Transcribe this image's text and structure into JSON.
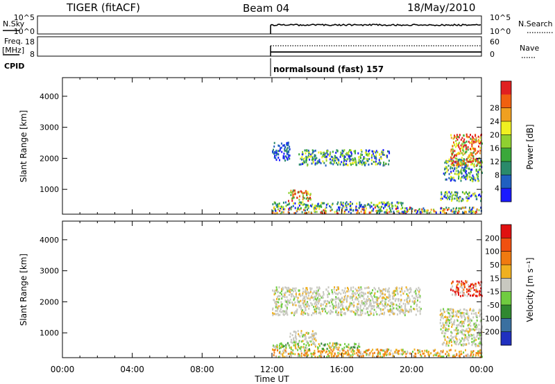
{
  "header": {
    "radar": "TIGER (fitACF)",
    "beam": "Beam 04",
    "date": "18/May/2010"
  },
  "strip_nsky": {
    "left_label": "N.Sky",
    "left_ticks": [
      "10^5",
      "10^0"
    ],
    "right_label": "N.Search",
    "right_ticks": [
      "10^5",
      "10^0"
    ]
  },
  "strip_freq": {
    "left_label": "Freq.",
    "left_unit": "[MHz]",
    "left_ticks": [
      "18",
      "8"
    ],
    "right_label": "Nave",
    "right_ticks": [
      "60",
      "0"
    ]
  },
  "strip_cpid": {
    "label": "CPID",
    "program": "normalsound (fast) 157"
  },
  "time_axis": {
    "label": "Time UT",
    "ticks": [
      "00:00",
      "04:00",
      "08:00",
      "12:00",
      "16:00",
      "20:00",
      "00:00"
    ]
  },
  "chart_data": [
    {
      "type": "heatmap",
      "panel": "power",
      "ylabel": "Slant Range [km]",
      "yticks": [
        1000,
        2000,
        3000,
        4000
      ],
      "ylim": [
        200,
        4600
      ],
      "xlim_hours": [
        0,
        24
      ],
      "data_start_hour": 12,
      "colorbar": {
        "label": "Power [dB]",
        "ticks": [
          "4",
          "8",
          "12",
          "16",
          "20",
          "24",
          "28"
        ],
        "colors": [
          "#1a1aff",
          "#2060c0",
          "#2a8a6a",
          "#3aa83a",
          "#90d030",
          "#f0f020",
          "#f0a020",
          "#f06010",
          "#e02020"
        ]
      },
      "echo_regions": [
        {
          "t0": 12.0,
          "t1": 24.0,
          "r0": 250,
          "r1": 450,
          "level": "mixed"
        },
        {
          "t0": 12.0,
          "t1": 19.5,
          "r0": 450,
          "r1": 620,
          "level": "medium"
        },
        {
          "t0": 12.9,
          "t1": 14.2,
          "r0": 650,
          "r1": 1000,
          "level": "high"
        },
        {
          "t0": 12.0,
          "t1": 13.0,
          "r0": 1950,
          "r1": 2550,
          "level": "low"
        },
        {
          "t0": 13.5,
          "t1": 18.7,
          "r0": 1800,
          "r1": 2300,
          "level": "medium"
        },
        {
          "t0": 21.6,
          "t1": 24.0,
          "r0": 650,
          "r1": 950,
          "level": "medium"
        },
        {
          "t0": 21.8,
          "t1": 24.0,
          "r0": 1300,
          "r1": 2000,
          "level": "medium"
        },
        {
          "t0": 22.2,
          "t1": 24.0,
          "r0": 1800,
          "r1": 2800,
          "level": "high"
        }
      ]
    },
    {
      "type": "heatmap",
      "panel": "velocity",
      "ylabel": "Slant Range [km]",
      "yticks": [
        1000,
        2000,
        3000,
        4000
      ],
      "ylim": [
        200,
        4600
      ],
      "xlim_hours": [
        0,
        24
      ],
      "data_start_hour": 12,
      "colorbar": {
        "label": "Velocity [m s⁻¹]",
        "ticks": [
          "200",
          "100",
          "50",
          "15",
          "-15",
          "-50",
          "-100",
          "-200"
        ],
        "colors": [
          "#2030c0",
          "#3a70a0",
          "#308830",
          "#70cc40",
          "#c8c8c0",
          "#f0b020",
          "#f07a10",
          "#f05010",
          "#e01010"
        ]
      },
      "echo_regions": [
        {
          "t0": 12.0,
          "t1": 24.0,
          "r0": 250,
          "r1": 500,
          "level": "orange"
        },
        {
          "t0": 12.0,
          "t1": 17.0,
          "r0": 500,
          "r1": 700,
          "level": "green"
        },
        {
          "t0": 12.0,
          "t1": 20.5,
          "r0": 1600,
          "r1": 2500,
          "level": "grey"
        },
        {
          "t0": 13.0,
          "t1": 14.5,
          "r0": 700,
          "r1": 1100,
          "level": "grey"
        },
        {
          "t0": 21.6,
          "t1": 24.0,
          "r0": 600,
          "r1": 1800,
          "level": "grey"
        },
        {
          "t0": 22.2,
          "t1": 24.0,
          "r0": 2200,
          "r1": 2700,
          "level": "red"
        }
      ]
    }
  ]
}
